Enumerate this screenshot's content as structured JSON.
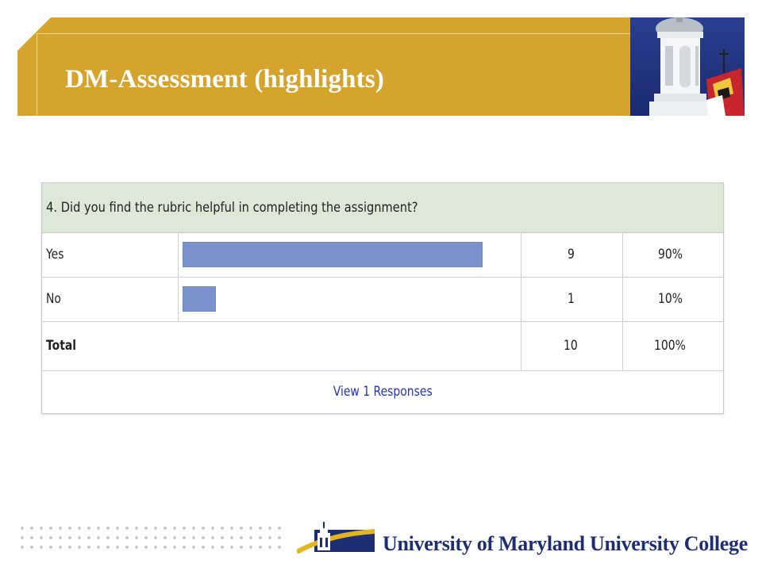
{
  "slide": {
    "title": "DM-Assessment (highlights)"
  },
  "survey": {
    "question": "4. Did you find the rubric helpful in completing the assignment?",
    "rows": [
      {
        "label": "Yes",
        "count": "9",
        "percent": "90%",
        "fraction": 0.9
      },
      {
        "label": "No",
        "count": "1",
        "percent": "10%",
        "fraction": 0.1
      }
    ],
    "total": {
      "label": "Total",
      "count": "10",
      "percent": "100%"
    },
    "link": "View 1 Responses"
  },
  "footer": {
    "institution": "University of Maryland University College"
  },
  "colors": {
    "banner": "#d4a42c",
    "bar": "#7b91cd",
    "question_bg": "#dde9d6",
    "footer_text": "#1d2e72"
  },
  "icons": {
    "photo": "cupola-photo",
    "logo": "umuc-logo-icon"
  }
}
